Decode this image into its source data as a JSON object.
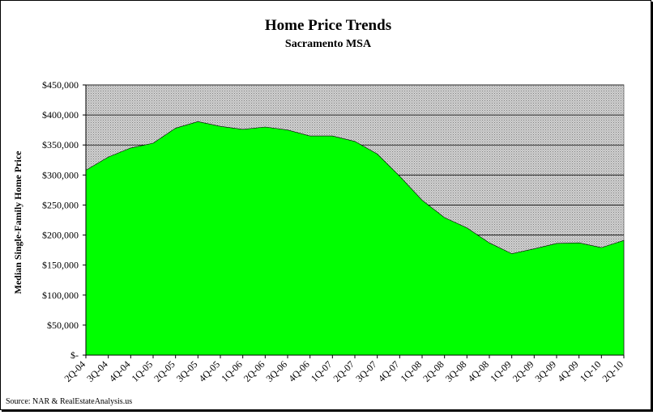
{
  "chart_data": {
    "type": "area",
    "title": "Home Price Trends",
    "subtitle": "Sacramento MSA",
    "ylabel": "Median Single-Family Home Price",
    "xlabel": "",
    "source": "Source: NAR & RealEstateAnalysis.us",
    "ylim": [
      0,
      450000
    ],
    "yticks": [
      0,
      50000,
      100000,
      150000,
      200000,
      250000,
      300000,
      350000,
      400000,
      450000
    ],
    "ytick_labels": [
      "$-",
      "$50,000",
      "$100,000",
      "$150,000",
      "$200,000",
      "$250,000",
      "$300,000",
      "$350,000",
      "$400,000",
      "$450,000"
    ],
    "categories": [
      "2Q-04",
      "3Q-04",
      "4Q-04",
      "1Q-05",
      "2Q-05",
      "3Q-05",
      "4Q-05",
      "1Q-06",
      "2Q-06",
      "3Q-06",
      "4Q-06",
      "1Q-07",
      "2Q-07",
      "3Q-07",
      "4Q-07",
      "1Q-08",
      "2Q-08",
      "3Q-08",
      "4Q-08",
      "1Q-09",
      "2Q-09",
      "3Q-09",
      "4Q-09",
      "1Q-10",
      "2Q-10"
    ],
    "series": [
      {
        "values": [
          308000,
          330000,
          345000,
          353000,
          378000,
          389000,
          381000,
          376000,
          380000,
          375000,
          365000,
          365000,
          356000,
          335000,
          298000,
          258000,
          229000,
          212000,
          187000,
          169000,
          177000,
          186000,
          187000,
          179000,
          191000
        ]
      }
    ],
    "colors": {
      "area": "#00ff00",
      "plot_bg": "#c0c0c0",
      "grid": "#000000"
    },
    "grid": true
  }
}
